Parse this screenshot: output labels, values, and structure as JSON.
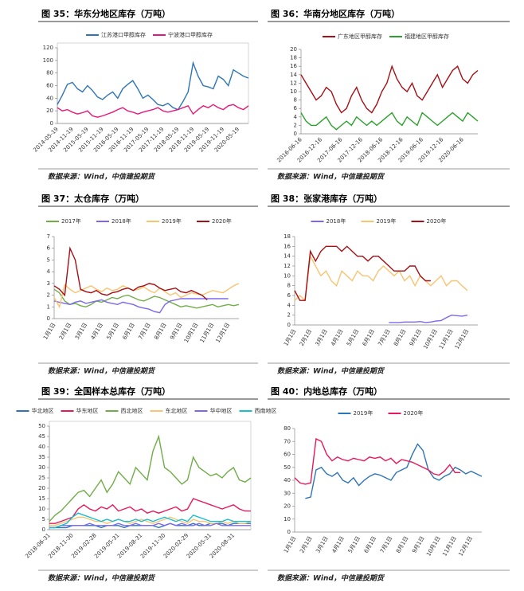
{
  "chart_data": [
    {
      "type": "line",
      "title": "图 35：华东分地区库存（万吨）",
      "source": "数据来源：Wind，中信建投期货",
      "rotate": -45,
      "frame": true,
      "categories": [
        "2014-05-19",
        null,
        null,
        "2014-11-19",
        null,
        null,
        "2015-05-19",
        null,
        null,
        "2015-11-19",
        null,
        null,
        "2016-05-19",
        null,
        null,
        "2016-11-19",
        null,
        null,
        "2017-05-19",
        null,
        null,
        "2017-11-19",
        null,
        null,
        "2018-05-19",
        null,
        null,
        "2018-11-19",
        null,
        null,
        "2019-05-19",
        null,
        null,
        "2019-11-19",
        null,
        null,
        "2020-05-19",
        null,
        null
      ],
      "ylim": [
        0,
        120
      ],
      "yticks": [
        0,
        20,
        40,
        60,
        80,
        100,
        120
      ],
      "series": [
        {
          "name": "江苏港口甲醇库存",
          "color": "#2e75b6",
          "values": [
            30,
            45,
            62,
            65,
            55,
            50,
            60,
            52,
            42,
            38,
            45,
            50,
            40,
            55,
            62,
            68,
            55,
            40,
            45,
            38,
            30,
            28,
            32,
            25,
            22,
            35,
            50,
            96,
            75,
            60,
            58,
            55,
            75,
            70,
            60,
            85,
            80,
            75,
            72
          ]
        },
        {
          "name": "宁波港口甲醇库存",
          "color": "#e6197a",
          "values": [
            25,
            20,
            22,
            18,
            15,
            17,
            20,
            12,
            10,
            12,
            15,
            18,
            22,
            25,
            20,
            18,
            15,
            18,
            20,
            22,
            25,
            20,
            18,
            20,
            22,
            25,
            28,
            15,
            22,
            28,
            25,
            30,
            25,
            22,
            28,
            30,
            25,
            22,
            28
          ]
        }
      ]
    },
    {
      "type": "line",
      "title": "图 36：华南分地区库存（万吨）",
      "source": "数据来源：Wind，中信建投期货",
      "rotate": -45,
      "frame": false,
      "categories": [
        "2016-06-16",
        null,
        null,
        null,
        "2016-12-16",
        null,
        null,
        null,
        "2017-06-16",
        null,
        null,
        null,
        "2017-12-16",
        null,
        null,
        null,
        "2018-06-16",
        null,
        null,
        null,
        "2018-12-16",
        null,
        null,
        null,
        "2019-06-16",
        null,
        null,
        null,
        "2019-12-16",
        null,
        null,
        null,
        "2020-06-16",
        null,
        null,
        null
      ],
      "ylim": [
        0,
        20
      ],
      "yticks": [
        0,
        2,
        4,
        6,
        8,
        10,
        12,
        14,
        16,
        18,
        20
      ],
      "series": [
        {
          "name": "广东地区甲醇库存",
          "color": "#a50f15",
          "values": [
            14,
            12,
            10,
            8,
            9,
            11,
            10,
            7,
            5,
            6,
            9,
            11,
            8,
            6,
            5,
            7,
            10,
            12,
            16,
            13,
            11,
            10,
            12,
            9,
            8,
            10,
            12,
            14,
            11,
            13,
            15,
            16,
            13,
            12,
            14,
            15
          ]
        },
        {
          "name": "福建地区甲醇库存",
          "color": "#2ca02c",
          "values": [
            5,
            3,
            2,
            2,
            3,
            4,
            2,
            1,
            2,
            3,
            2,
            4,
            3,
            2,
            3,
            2,
            3,
            4,
            5,
            3,
            2,
            4,
            3,
            2,
            5,
            4,
            3,
            2,
            3,
            4,
            5,
            4,
            3,
            5,
            4,
            3
          ]
        }
      ]
    },
    {
      "type": "line",
      "title": "图 37：太仓库存（万吨）",
      "source": "数据来源：Wind，中信建投期货",
      "rotate": -60,
      "frame": false,
      "categories": [
        "1月1日",
        null,
        null,
        "2月1日",
        null,
        null,
        "3月1日",
        null,
        null,
        "4月1日",
        null,
        null,
        "5月1日",
        null,
        null,
        "6月1日",
        null,
        null,
        "7月1日",
        null,
        null,
        "8月1日",
        null,
        null,
        "9月1日",
        null,
        null,
        "10月1日",
        null,
        null,
        "11月1日",
        null,
        null,
        "12月1日",
        null,
        null
      ],
      "ylim": [
        0,
        7
      ],
      "yticks": [
        0,
        1,
        2,
        3,
        4,
        5,
        6,
        7
      ],
      "series": [
        {
          "name": "2017年",
          "color": "#70ad47",
          "values": [
            2.5,
            2.2,
            1.5,
            1.2,
            1.3,
            1.1,
            1.0,
            1.2,
            1.5,
            1.4,
            1.6,
            1.8,
            1.7,
            1.9,
            2.0,
            1.8,
            1.6,
            1.5,
            1.7,
            1.9,
            1.8,
            1.6,
            1.4,
            1.2,
            1.0,
            1.1,
            1.0,
            0.9,
            1.0,
            1.1,
            1.2,
            1.0,
            1.1,
            1.2,
            1.1,
            1.2
          ]
        },
        {
          "name": "2018年",
          "color": "#7b68ee",
          "values": [
            1.5,
            1.4,
            1.3,
            1.2,
            1.4,
            1.5,
            1.3,
            1.4,
            1.5,
            1.6,
            1.4,
            1.3,
            1.2,
            1.4,
            1.3,
            1.2,
            1.0,
            0.9,
            0.8,
            0.6,
            0.5,
            1.2,
            1.5,
            1.6,
            1.7,
            1.7,
            1.7,
            1.7,
            1.7,
            1.7,
            1.7,
            1.7,
            1.7,
            1.7,
            null,
            null
          ]
        },
        {
          "name": "2019年",
          "color": "#f8c471",
          "values": [
            1.8,
            1.0,
            2.9,
            2.5,
            2.2,
            2.4,
            2.6,
            2.8,
            2.5,
            2.3,
            2.6,
            2.4,
            2.5,
            2.8,
            2.6,
            2.4,
            2.5,
            2.7,
            2.4,
            2.2,
            2.6,
            2.3,
            2.0,
            2.2,
            1.8,
            2.0,
            2.2,
            2.1,
            2.0,
            2.2,
            2.4,
            2.3,
            2.2,
            2.5,
            2.8,
            3.0
          ]
        },
        {
          "name": "2020年",
          "color": "#a50f15",
          "values": [
            2.8,
            2.5,
            2.0,
            6.0,
            5.0,
            2.5,
            2.3,
            2.2,
            2.4,
            2.1,
            2.0,
            2.2,
            2.3,
            2.5,
            2.6,
            2.4,
            2.7,
            2.8,
            3.0,
            2.9,
            2.6,
            2.4,
            2.5,
            2.6,
            2.3,
            2.2,
            2.4,
            2.2,
            2.0,
            1.6,
            null,
            null,
            null,
            null,
            null,
            null
          ]
        }
      ]
    },
    {
      "type": "line",
      "title": "图 38：张家港库存（万吨）",
      "source": "数据来源：Wind，中信建投期货",
      "rotate": -60,
      "frame": false,
      "categories": [
        "1月1日",
        null,
        null,
        "2月1日",
        null,
        null,
        "3月1日",
        null,
        null,
        "4月1日",
        null,
        null,
        "5月1日",
        null,
        null,
        "6月1日",
        null,
        null,
        "7月1日",
        null,
        null,
        "8月1日",
        null,
        null,
        "9月1日",
        null,
        null,
        "10月1日",
        null,
        null,
        "11月1日",
        null,
        null,
        "12月1日",
        null,
        null
      ],
      "ylim": [
        0,
        18
      ],
      "yticks": [
        0,
        2,
        4,
        6,
        8,
        10,
        12,
        14,
        16,
        18
      ],
      "series": [
        {
          "name": "2018年",
          "color": "#7b68ee",
          "values": [
            null,
            null,
            null,
            null,
            null,
            null,
            null,
            null,
            null,
            null,
            null,
            null,
            null,
            null,
            null,
            null,
            null,
            null,
            0.5,
            0.5,
            0.5,
            0.6,
            0.6,
            0.6,
            0.7,
            0.5,
            0.6,
            0.8,
            0.9,
            1.5,
            2.0,
            1.9,
            1.8,
            2.0,
            null,
            null
          ]
        },
        {
          "name": "2019年",
          "color": "#f8c471",
          "values": [
            5,
            6,
            5,
            14,
            12,
            10,
            11,
            9,
            8,
            11,
            10,
            9,
            11,
            10,
            10,
            9,
            11,
            12,
            11,
            10,
            11,
            9,
            10,
            8,
            10,
            9,
            8,
            9,
            10,
            8,
            9,
            9,
            8,
            7,
            null,
            null
          ]
        },
        {
          "name": "2020年",
          "color": "#a50f15",
          "values": [
            7,
            5,
            5,
            15,
            13,
            15,
            16,
            16,
            16,
            15,
            16,
            15,
            14,
            14,
            13,
            14,
            14,
            13,
            12,
            11,
            11,
            11,
            12,
            12,
            10,
            9,
            9,
            null,
            null,
            null,
            null,
            null,
            null,
            null,
            null,
            null
          ]
        }
      ]
    },
    {
      "type": "line",
      "title": "图 39：全国样本总库存（万吨）",
      "source": "数据来源：Wind，中信建投期货",
      "rotate": -45,
      "frame": true,
      "categories": [
        "2018-06-31",
        null,
        null,
        null,
        "2018-11-30",
        null,
        null,
        null,
        "2019-02-28",
        null,
        null,
        null,
        "2019-05-31",
        null,
        null,
        null,
        "2019-08-31",
        null,
        null,
        null,
        "2019-11-30",
        null,
        null,
        null,
        "2020-02-29",
        null,
        null,
        null,
        "2020-05-31",
        null,
        null,
        null,
        "2020-08-31",
        null,
        null,
        null
      ],
      "ylim": [
        0,
        50
      ],
      "yticks": [
        0,
        5,
        10,
        15,
        20,
        25,
        30,
        35,
        40,
        45,
        50
      ],
      "series": [
        {
          "name": "华北地区",
          "color": "#2e75b6",
          "values": [
            1,
            1,
            1,
            1,
            2,
            2,
            2,
            2,
            2,
            1,
            2,
            2,
            2,
            1,
            2,
            2,
            2,
            2,
            2,
            1,
            2,
            3,
            2,
            2,
            2,
            3,
            2,
            2,
            3,
            3,
            3,
            2,
            3,
            3,
            3,
            3
          ]
        },
        {
          "name": "华东地区",
          "color": "#e6195a",
          "values": [
            3,
            3,
            4,
            5,
            6,
            10,
            12,
            10,
            9,
            11,
            10,
            12,
            9,
            10,
            11,
            9,
            10,
            8,
            9,
            8,
            9,
            10,
            11,
            9,
            10,
            15,
            14,
            13,
            12,
            11,
            10,
            11,
            12,
            10,
            9,
            9
          ]
        },
        {
          "name": "西北地区",
          "color": "#70ad47",
          "values": [
            4,
            7,
            9,
            12,
            15,
            18,
            19,
            16,
            20,
            24,
            18,
            22,
            28,
            25,
            22,
            30,
            27,
            24,
            38,
            45,
            30,
            28,
            25,
            22,
            24,
            35,
            30,
            28,
            26,
            27,
            25,
            28,
            30,
            24,
            23,
            25
          ]
        },
        {
          "name": "东北地区",
          "color": "#f8c471",
          "values": [
            2,
            2,
            3,
            4,
            5,
            6,
            6,
            5,
            4,
            4,
            3,
            4,
            5,
            4,
            3,
            4,
            5,
            4,
            3,
            4,
            5,
            6,
            5,
            4,
            3,
            5,
            4,
            4,
            3,
            3,
            4,
            3,
            4,
            3,
            3,
            4
          ]
        },
        {
          "name": "华中地区",
          "color": "#7b68ee",
          "values": [
            1,
            1,
            2,
            2,
            2,
            2,
            2,
            3,
            2,
            2,
            2,
            2,
            3,
            2,
            2,
            3,
            2,
            2,
            2,
            3,
            2,
            3,
            2,
            3,
            2,
            2,
            3,
            2,
            2,
            3,
            2,
            2,
            2,
            2,
            2,
            2
          ]
        },
        {
          "name": "西南地区",
          "color": "#17becf",
          "values": [
            1,
            1,
            2,
            3,
            6,
            8,
            7,
            6,
            5,
            4,
            5,
            4,
            5,
            4,
            4,
            5,
            4,
            5,
            4,
            5,
            6,
            5,
            4,
            5,
            4,
            7,
            6,
            5,
            4,
            4,
            4,
            5,
            4,
            4,
            4,
            4
          ]
        }
      ]
    },
    {
      "type": "line",
      "title": "图 40：内地总库存（万吨）",
      "source": "数据来源：Wind，中信建投期货",
      "rotate": -60,
      "frame": false,
      "categories": [
        "1月1日",
        null,
        null,
        "2月1日",
        null,
        null,
        "3月1日",
        null,
        null,
        "4月1日",
        null,
        null,
        "5月1日",
        null,
        null,
        "6月1日",
        null,
        null,
        "7月1日",
        null,
        null,
        "8月1日",
        null,
        null,
        "9月1日",
        null,
        null,
        "10月1日",
        null,
        null,
        "11月1日",
        null,
        null,
        "12月1日",
        null,
        null
      ],
      "ylim": [
        0,
        80
      ],
      "yticks": [
        0,
        10,
        20,
        30,
        40,
        50,
        60,
        70,
        80
      ],
      "series": [
        {
          "name": "2019年",
          "color": "#2e75b6",
          "values": [
            null,
            null,
            26,
            27,
            48,
            50,
            45,
            43,
            46,
            40,
            38,
            42,
            36,
            40,
            43,
            45,
            44,
            42,
            40,
            46,
            48,
            50,
            60,
            68,
            63,
            48,
            42,
            40,
            43,
            45,
            50,
            48,
            45,
            47,
            45,
            43
          ]
        },
        {
          "name": "2020年",
          "color": "#e6195a",
          "values": [
            42,
            38,
            37,
            38,
            72,
            70,
            60,
            55,
            58,
            56,
            55,
            57,
            56,
            55,
            58,
            57,
            58,
            55,
            57,
            53,
            56,
            55,
            54,
            52,
            50,
            48,
            45,
            44,
            47,
            52,
            46,
            46,
            null,
            null,
            null,
            null
          ]
        }
      ]
    }
  ]
}
